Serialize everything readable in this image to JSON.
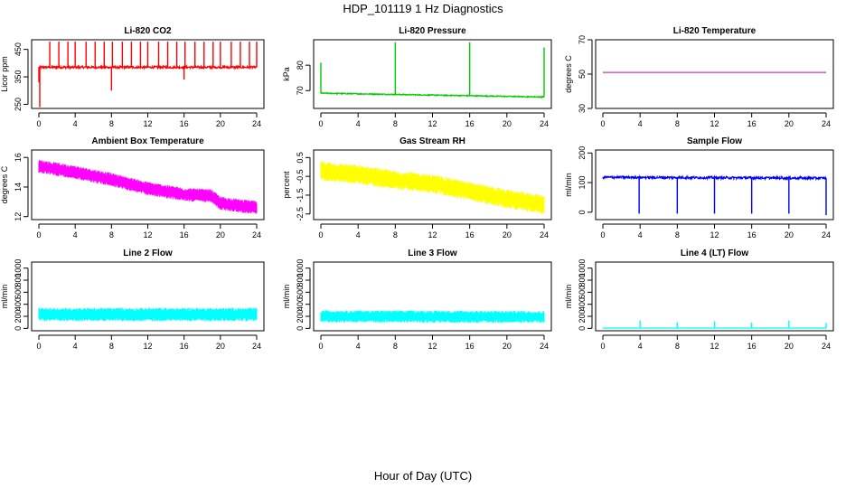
{
  "figure": {
    "title": "HDP_101119  1 Hz Diagnostics",
    "xlabel": "Hour of Day (UTC)"
  },
  "chart_data": [
    {
      "type": "line",
      "title": "Li-820 CO2",
      "ylabel": "Licor ppm",
      "color": "#ff0000",
      "xlim": [
        0,
        24
      ],
      "xticks": [
        0,
        4,
        8,
        12,
        16,
        20,
        24
      ],
      "ylim": [
        235,
        485
      ],
      "yticks": [
        250,
        350,
        450
      ],
      "series": [
        {
          "name": "Li-820 CO2",
          "style": "spiky",
          "base": [
            [
              0,
              385
            ],
            [
              24,
              385
            ]
          ],
          "noise": 4,
          "spikes": [
            [
              0,
              330
            ],
            [
              0.1,
              240
            ],
            [
              1.2,
              478
            ],
            [
              2.2,
              478
            ],
            [
              3.2,
              478
            ],
            [
              4,
              478
            ],
            [
              5.2,
              478
            ],
            [
              6.2,
              478
            ],
            [
              7.2,
              478
            ],
            [
              8,
              300
            ],
            [
              8.1,
              478
            ],
            [
              9.2,
              478
            ],
            [
              10.2,
              478
            ],
            [
              11.2,
              478
            ],
            [
              12,
              478
            ],
            [
              13.2,
              478
            ],
            [
              14.2,
              478
            ],
            [
              15.2,
              478
            ],
            [
              16,
              340
            ],
            [
              16.1,
              478
            ],
            [
              17.2,
              478
            ],
            [
              18.2,
              478
            ],
            [
              19.2,
              478
            ],
            [
              20,
              478
            ],
            [
              21.2,
              478
            ],
            [
              22.2,
              478
            ],
            [
              23.2,
              478
            ],
            [
              24,
              478
            ]
          ]
        }
      ]
    },
    {
      "type": "line",
      "title": "Li-820 Pressure",
      "ylabel": "kPa",
      "color": "#00cc00",
      "xlim": [
        0,
        24
      ],
      "xticks": [
        0,
        4,
        8,
        12,
        16,
        20,
        24
      ],
      "ylim": [
        63,
        90
      ],
      "yticks": [
        70,
        80
      ],
      "series": [
        {
          "name": "Li-820 Pressure",
          "style": "spiky",
          "base": [
            [
              0,
              69
            ],
            [
              24,
              67.5
            ]
          ],
          "noise": 0.2,
          "spikes": [
            [
              0,
              81
            ],
            [
              8,
              89
            ],
            [
              16,
              89
            ],
            [
              24,
              87
            ]
          ]
        }
      ]
    },
    {
      "type": "line",
      "title": "Li-820 Temperature",
      "ylabel": "degrees C",
      "color": "#cc00cc",
      "xlim": [
        0,
        24
      ],
      "xticks": [
        0,
        4,
        8,
        12,
        16,
        20,
        24
      ],
      "ylim": [
        30,
        70
      ],
      "yticks": [
        30,
        50,
        70
      ],
      "series": [
        {
          "name": "Li-820 Temperature",
          "style": "line",
          "base": [
            [
              0,
              51
            ],
            [
              24,
              51
            ]
          ],
          "noise": 0,
          "spikes": []
        }
      ]
    },
    {
      "type": "line",
      "title": "Ambient Box Temperature",
      "ylabel": "degrees C",
      "color": "#ff00ff",
      "xlim": [
        0,
        24
      ],
      "xticks": [
        0,
        4,
        8,
        12,
        16,
        20,
        24
      ],
      "ylim": [
        11.8,
        16.5
      ],
      "yticks": [
        12,
        14,
        16
      ],
      "series": [
        {
          "name": "Ambient Box Temperature",
          "style": "band",
          "base": [
            [
              0,
              15.4
            ],
            [
              4,
              15
            ],
            [
              8,
              14.5
            ],
            [
              12,
              13.9
            ],
            [
              16,
              13.5
            ],
            [
              19,
              13.4
            ],
            [
              20,
              12.9
            ],
            [
              24,
              12.6
            ]
          ],
          "noise": 0.45,
          "spikes": []
        }
      ]
    },
    {
      "type": "line",
      "title": "Gas Stream RH",
      "ylabel": "percent",
      "color": "#ffff00",
      "xlim": [
        0,
        24
      ],
      "xticks": [
        0,
        4,
        8,
        12,
        16,
        20,
        24
      ],
      "ylim": [
        -2.8,
        0.9
      ],
      "yticks": [
        -2.5,
        -1.5,
        -0.5,
        0.5
      ],
      "series": [
        {
          "name": "Gas Stream RH",
          "style": "band",
          "base": [
            [
              0,
              -0.2
            ],
            [
              4,
              -0.4
            ],
            [
              8,
              -0.7
            ],
            [
              12,
              -0.9
            ],
            [
              16,
              -1.3
            ],
            [
              20,
              -1.7
            ],
            [
              24,
              -2.0
            ]
          ],
          "noise": 0.5,
          "spikes": []
        }
      ]
    },
    {
      "type": "line",
      "title": "Sample Flow",
      "ylabel": "ml/min",
      "color": "#0000ff",
      "xlim": [
        0,
        24
      ],
      "xticks": [
        0,
        4,
        8,
        12,
        16,
        20,
        24
      ],
      "ylim": [
        -25,
        210
      ],
      "yticks": [
        0,
        100,
        200
      ],
      "series": [
        {
          "name": "Sample Flow",
          "style": "spiky",
          "base": [
            [
              0,
              118
            ],
            [
              24,
              115
            ]
          ],
          "noise": 4,
          "spikes": [
            [
              3.9,
              -5
            ],
            [
              8,
              -5
            ],
            [
              12,
              -5
            ],
            [
              16,
              -5
            ],
            [
              20,
              -5
            ],
            [
              24,
              -10
            ]
          ]
        }
      ]
    },
    {
      "type": "line",
      "title": "Line 2 Flow",
      "ylabel": "ml/min",
      "color": "#00ffff",
      "xlim": [
        0,
        24
      ],
      "xticks": [
        0,
        4,
        8,
        12,
        16,
        20,
        24
      ],
      "ylim": [
        -40,
        1100
      ],
      "yticks": [
        0,
        200,
        400,
        600,
        800,
        1000
      ],
      "series": [
        {
          "name": "Line 2 Flow",
          "style": "band",
          "base": [
            [
              0,
              230
            ],
            [
              24,
              230
            ]
          ],
          "noise": 110,
          "spikes": []
        }
      ]
    },
    {
      "type": "line",
      "title": "Line 3 Flow",
      "ylabel": "ml/min",
      "color": "#00ffff",
      "xlim": [
        0,
        24
      ],
      "xticks": [
        0,
        4,
        8,
        12,
        16,
        20,
        24
      ],
      "ylim": [
        -40,
        1100
      ],
      "yticks": [
        0,
        200,
        400,
        600,
        800,
        1000
      ],
      "series": [
        {
          "name": "Line 3 Flow",
          "style": "band",
          "base": [
            [
              0,
              200
            ],
            [
              24,
              190
            ]
          ],
          "noise": 100,
          "spikes": []
        }
      ]
    },
    {
      "type": "line",
      "title": "Line 4 (LT) Flow",
      "ylabel": "ml/min",
      "color": "#00ffff",
      "xlim": [
        0,
        24
      ],
      "xticks": [
        0,
        4,
        8,
        12,
        16,
        20,
        24
      ],
      "ylim": [
        -40,
        1100
      ],
      "yticks": [
        0,
        200,
        400,
        600,
        800,
        1000
      ],
      "series": [
        {
          "name": "Line 4 (LT) Flow",
          "style": "spiky",
          "base": [
            [
              0,
              5
            ],
            [
              24,
              5
            ]
          ],
          "noise": 0,
          "spikes": [
            [
              4,
              130
            ],
            [
              8,
              100
            ],
            [
              12,
              120
            ],
            [
              16,
              95
            ],
            [
              20,
              130
            ],
            [
              24,
              90
            ]
          ]
        }
      ]
    }
  ]
}
